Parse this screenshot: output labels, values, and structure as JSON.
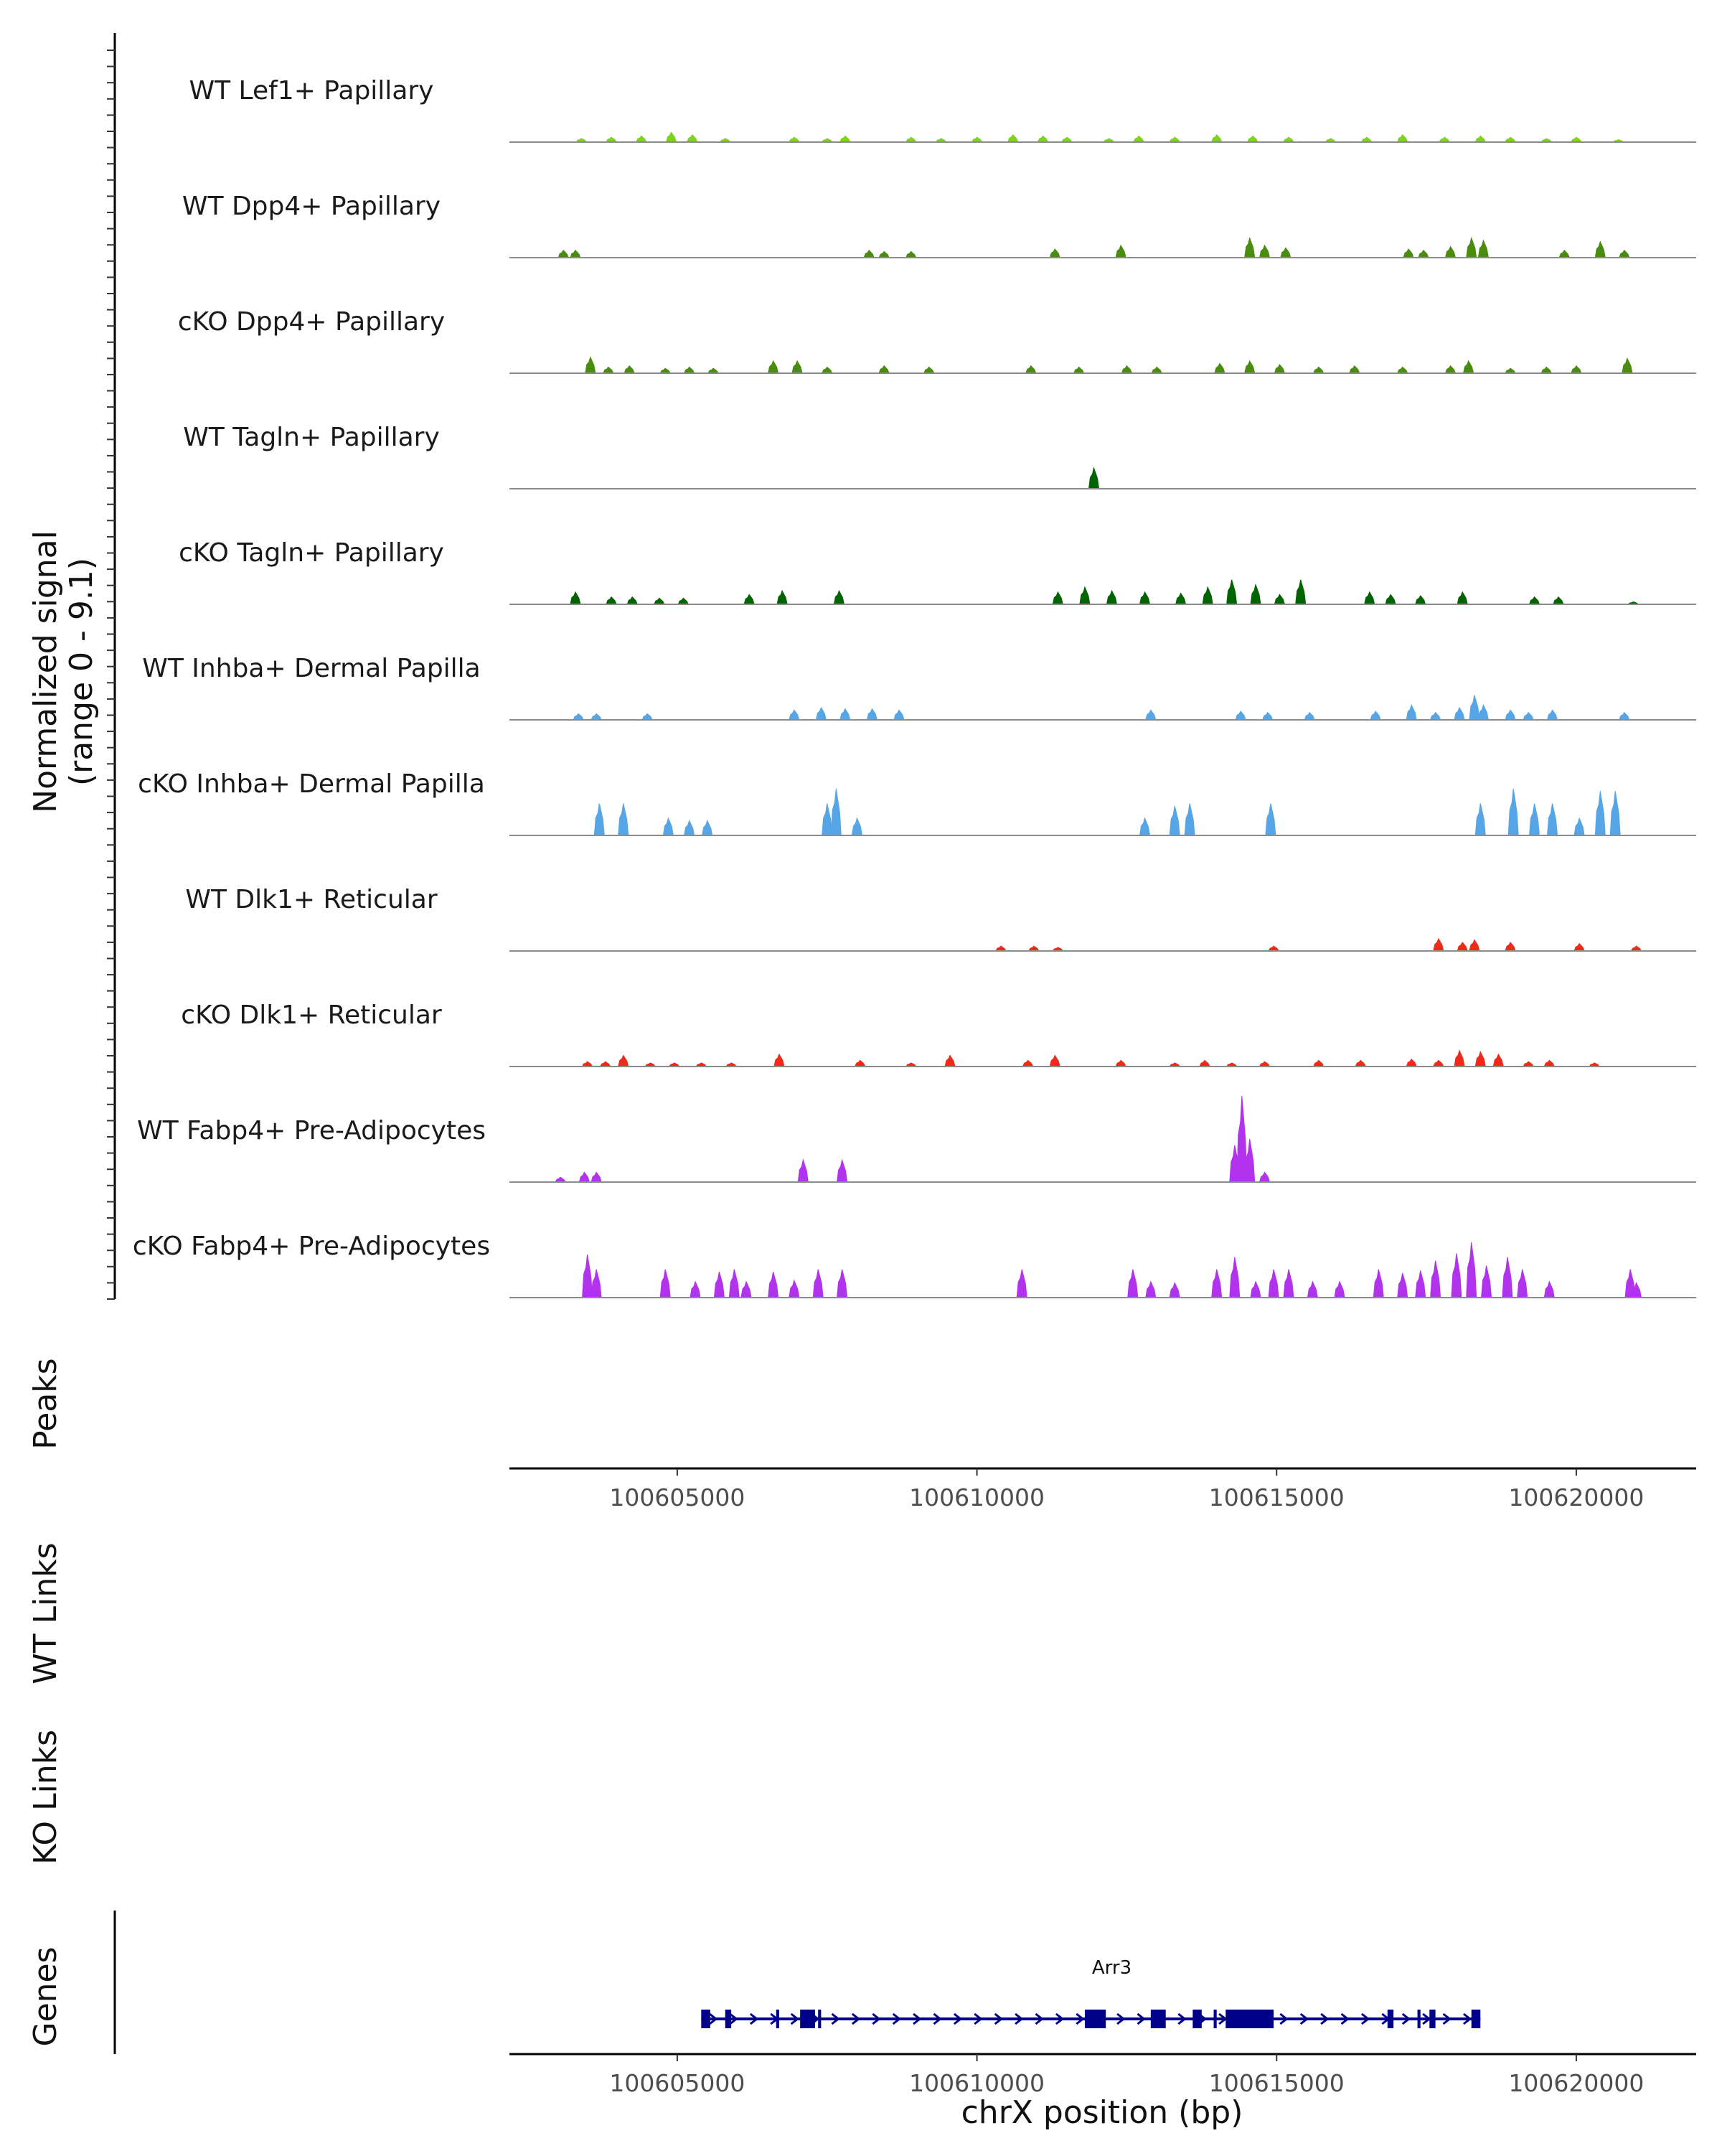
{
  "chart_data": {
    "type": "area",
    "title": "",
    "ylabel": "Normalized signal",
    "ylabel_range": "(range 0 - 9.1)",
    "ylim": [
      0,
      9.1
    ],
    "xlabel": "chrX position (bp)",
    "xlim": [
      100602200,
      100622000
    ],
    "xticks": [
      100605000,
      100610000,
      100615000,
      100620000
    ],
    "xtick_labels": [
      "100605000",
      "100610000",
      "100615000",
      "100620000"
    ],
    "tracks": [
      {
        "name": "WT Lef1+ Papillary",
        "color": "#7ED321",
        "peaks": [
          [
            100603400,
            0.3
          ],
          [
            100603900,
            0.4
          ],
          [
            100604400,
            0.5
          ],
          [
            100604900,
            0.8
          ],
          [
            100605250,
            0.6
          ],
          [
            100605800,
            0.3
          ],
          [
            100606950,
            0.4
          ],
          [
            100607500,
            0.3
          ],
          [
            100607800,
            0.5
          ],
          [
            100608900,
            0.4
          ],
          [
            100609400,
            0.3
          ],
          [
            100610000,
            0.4
          ],
          [
            100610600,
            0.6
          ],
          [
            100611100,
            0.5
          ],
          [
            100611500,
            0.4
          ],
          [
            100612200,
            0.3
          ],
          [
            100612700,
            0.5
          ],
          [
            100613300,
            0.4
          ],
          [
            100614000,
            0.6
          ],
          [
            100614600,
            0.5
          ],
          [
            100615200,
            0.4
          ],
          [
            100615900,
            0.3
          ],
          [
            100616500,
            0.4
          ],
          [
            100617100,
            0.6
          ],
          [
            100617800,
            0.4
          ],
          [
            100618400,
            0.5
          ],
          [
            100618900,
            0.4
          ],
          [
            100619500,
            0.3
          ],
          [
            100620000,
            0.4
          ],
          [
            100620700,
            0.2
          ]
        ]
      },
      {
        "name": "WT Dpp4+ Papillary",
        "color": "#4A8C0E",
        "peaks": [
          [
            100603100,
            0.6
          ],
          [
            100603300,
            0.6
          ],
          [
            100608200,
            0.6
          ],
          [
            100608450,
            0.5
          ],
          [
            100608900,
            0.5
          ],
          [
            100611300,
            0.7
          ],
          [
            100612400,
            1.0
          ],
          [
            100614550,
            1.6
          ],
          [
            100614800,
            1.0
          ],
          [
            100615150,
            0.8
          ],
          [
            100617200,
            0.7
          ],
          [
            100617450,
            0.6
          ],
          [
            100617900,
            0.9
          ],
          [
            100618250,
            1.6
          ],
          [
            100618450,
            1.4
          ],
          [
            100619800,
            0.6
          ],
          [
            100620400,
            1.3
          ],
          [
            100620800,
            0.6
          ]
        ]
      },
      {
        "name": "cKO Dpp4+ Papillary",
        "color": "#4A8C0E",
        "peaks": [
          [
            100603550,
            1.3
          ],
          [
            100603850,
            0.5
          ],
          [
            100604200,
            0.6
          ],
          [
            100604800,
            0.4
          ],
          [
            100605200,
            0.5
          ],
          [
            100605600,
            0.4
          ],
          [
            100606600,
            1.0
          ],
          [
            100607000,
            1.0
          ],
          [
            100607500,
            0.5
          ],
          [
            100608450,
            0.6
          ],
          [
            100609200,
            0.5
          ],
          [
            100610900,
            0.6
          ],
          [
            100611700,
            0.5
          ],
          [
            100612500,
            0.6
          ],
          [
            100613000,
            0.5
          ],
          [
            100614050,
            0.8
          ],
          [
            100614550,
            1.0
          ],
          [
            100615050,
            0.7
          ],
          [
            100615700,
            0.5
          ],
          [
            100616300,
            0.6
          ],
          [
            100617100,
            0.5
          ],
          [
            100617900,
            0.6
          ],
          [
            100618200,
            1.0
          ],
          [
            100618900,
            0.4
          ],
          [
            100619500,
            0.5
          ],
          [
            100620000,
            0.6
          ],
          [
            100620850,
            1.2
          ]
        ]
      },
      {
        "name": "WT Tagln+ Papillary",
        "color": "#006400",
        "peaks": [
          [
            100611950,
            1.7
          ]
        ]
      },
      {
        "name": "cKO Tagln+ Papillary",
        "color": "#006400",
        "peaks": [
          [
            100603300,
            1.0
          ],
          [
            100603900,
            0.6
          ],
          [
            100604250,
            0.6
          ],
          [
            100604700,
            0.5
          ],
          [
            100605100,
            0.5
          ],
          [
            100606200,
            0.8
          ],
          [
            100606750,
            1.1
          ],
          [
            100607700,
            1.1
          ],
          [
            100611350,
            1.0
          ],
          [
            100611800,
            1.4
          ],
          [
            100612250,
            1.1
          ],
          [
            100612800,
            1.0
          ],
          [
            100613400,
            0.9
          ],
          [
            100613850,
            1.4
          ],
          [
            100614250,
            2.0
          ],
          [
            100614650,
            1.6
          ],
          [
            100615050,
            0.8
          ],
          [
            100615400,
            2.0
          ],
          [
            100616550,
            1.0
          ],
          [
            100616900,
            0.8
          ],
          [
            100617400,
            0.7
          ],
          [
            100618100,
            1.0
          ],
          [
            100619300,
            0.6
          ],
          [
            100619700,
            0.6
          ],
          [
            100620950,
            0.2
          ]
        ]
      },
      {
        "name": "WT Inhba+ Dermal Papilla",
        "color": "#56A5E6",
        "peaks": [
          [
            100603350,
            0.5
          ],
          [
            100603650,
            0.5
          ],
          [
            100604500,
            0.5
          ],
          [
            100606950,
            0.8
          ],
          [
            100607400,
            1.0
          ],
          [
            100607800,
            0.9
          ],
          [
            100608250,
            0.9
          ],
          [
            100608700,
            0.8
          ],
          [
            100612900,
            0.8
          ],
          [
            100614400,
            0.7
          ],
          [
            100614850,
            0.6
          ],
          [
            100615550,
            0.6
          ],
          [
            100616650,
            0.7
          ],
          [
            100617250,
            1.2
          ],
          [
            100617650,
            0.6
          ],
          [
            100618050,
            1.0
          ],
          [
            100618300,
            2.0
          ],
          [
            100618450,
            1.2
          ],
          [
            100618900,
            0.8
          ],
          [
            100619200,
            0.6
          ],
          [
            100619600,
            0.8
          ],
          [
            100620800,
            0.6
          ]
        ]
      },
      {
        "name": "cKO Inhba+ Dermal Papilla",
        "color": "#56A5E6",
        "peaks": [
          [
            100603700,
            2.6
          ],
          [
            100604100,
            2.6
          ],
          [
            100604850,
            1.4
          ],
          [
            100605200,
            1.2
          ],
          [
            100605500,
            1.2
          ],
          [
            100607500,
            2.6
          ],
          [
            100607650,
            3.8
          ],
          [
            100608000,
            1.4
          ],
          [
            100612800,
            1.4
          ],
          [
            100613300,
            2.4
          ],
          [
            100613550,
            2.6
          ],
          [
            100614900,
            2.6
          ],
          [
            100618400,
            2.6
          ],
          [
            100618950,
            3.8
          ],
          [
            100619300,
            2.6
          ],
          [
            100619600,
            2.6
          ],
          [
            100620050,
            1.4
          ],
          [
            100620400,
            3.6
          ],
          [
            100620650,
            3.6
          ]
        ]
      },
      {
        "name": "WT Dlk1+ Reticular",
        "color": "#EE2B1A",
        "peaks": [
          [
            100610400,
            0.4
          ],
          [
            100610950,
            0.4
          ],
          [
            100611350,
            0.3
          ],
          [
            100614950,
            0.4
          ],
          [
            100617700,
            1.0
          ],
          [
            100618100,
            0.7
          ],
          [
            100618300,
            0.9
          ],
          [
            100618900,
            0.7
          ],
          [
            100620050,
            0.6
          ],
          [
            100621000,
            0.4
          ]
        ]
      },
      {
        "name": "cKO Dlk1+ Reticular",
        "color": "#EE2B1A",
        "peaks": [
          [
            100603500,
            0.4
          ],
          [
            100603800,
            0.4
          ],
          [
            100604100,
            0.9
          ],
          [
            100604550,
            0.3
          ],
          [
            100604950,
            0.3
          ],
          [
            100605400,
            0.3
          ],
          [
            100605900,
            0.3
          ],
          [
            100606700,
            1.0
          ],
          [
            100608050,
            0.5
          ],
          [
            100608900,
            0.3
          ],
          [
            100609550,
            0.9
          ],
          [
            100610850,
            0.5
          ],
          [
            100611300,
            0.9
          ],
          [
            100612400,
            0.5
          ],
          [
            100613300,
            0.3
          ],
          [
            100613800,
            0.5
          ],
          [
            100614250,
            0.3
          ],
          [
            100614800,
            0.4
          ],
          [
            100615700,
            0.5
          ],
          [
            100616400,
            0.5
          ],
          [
            100617250,
            0.6
          ],
          [
            100617700,
            0.5
          ],
          [
            100618050,
            1.3
          ],
          [
            100618400,
            1.2
          ],
          [
            100618700,
            1.0
          ],
          [
            100619200,
            0.4
          ],
          [
            100619550,
            0.5
          ],
          [
            100620300,
            0.3
          ]
        ]
      },
      {
        "name": "WT Fabp4+ Pre-Adipocytes",
        "color": "#B233EE",
        "peaks": [
          [
            100603050,
            0.4
          ],
          [
            100603450,
            0.8
          ],
          [
            100603650,
            0.8
          ],
          [
            100607100,
            1.8
          ],
          [
            100607750,
            1.8
          ],
          [
            100614300,
            3.0
          ],
          [
            100614420,
            7.0
          ],
          [
            100614550,
            3.5
          ],
          [
            100614800,
            0.8
          ]
        ]
      },
      {
        "name": "cKO Fabp4+ Pre-Adipocytes",
        "color": "#B233EE",
        "peaks": [
          [
            100603500,
            3.5
          ],
          [
            100603650,
            2.3
          ],
          [
            100604800,
            2.3
          ],
          [
            100605300,
            1.3
          ],
          [
            100605700,
            2.1
          ],
          [
            100605950,
            2.3
          ],
          [
            100606150,
            1.3
          ],
          [
            100606600,
            2.1
          ],
          [
            100606950,
            1.4
          ],
          [
            100607350,
            2.3
          ],
          [
            100607750,
            2.3
          ],
          [
            100610750,
            2.3
          ],
          [
            100612600,
            2.3
          ],
          [
            100612900,
            1.3
          ],
          [
            100613300,
            1.2
          ],
          [
            100614000,
            2.3
          ],
          [
            100614300,
            3.3
          ],
          [
            100614650,
            1.3
          ],
          [
            100614950,
            2.3
          ],
          [
            100615200,
            2.3
          ],
          [
            100615600,
            1.3
          ],
          [
            100616050,
            1.3
          ],
          [
            100616700,
            2.3
          ],
          [
            100617100,
            2.0
          ],
          [
            100617400,
            2.2
          ],
          [
            100617650,
            3.0
          ],
          [
            100618000,
            3.6
          ],
          [
            100618250,
            4.5
          ],
          [
            100618500,
            2.6
          ],
          [
            100618850,
            3.3
          ],
          [
            100619100,
            2.3
          ],
          [
            100619550,
            1.3
          ],
          [
            100620900,
            2.3
          ],
          [
            100621000,
            1.2
          ]
        ]
      }
    ],
    "gene": {
      "name": "Arr3",
      "strand": "+",
      "start": 100605400,
      "end": 100618400,
      "exons": [
        [
          100605400,
          100605550
        ],
        [
          100605800,
          100605900
        ],
        [
          100606650,
          100606700
        ],
        [
          100607050,
          100607300
        ],
        [
          100607350,
          100607400
        ],
        [
          100611800,
          100612150
        ],
        [
          100612900,
          100613150
        ],
        [
          100613600,
          100613750
        ],
        [
          100613950,
          100614000
        ],
        [
          100614150,
          100614950
        ],
        [
          100616850,
          100616950
        ],
        [
          100617350,
          100617400
        ],
        [
          100617550,
          100617650
        ],
        [
          100618250,
          100618400
        ]
      ]
    },
    "panels": {
      "peaks": "Peaks",
      "wt_links": "WT Links",
      "ko_links": "KO Links",
      "genes": "Genes"
    }
  }
}
